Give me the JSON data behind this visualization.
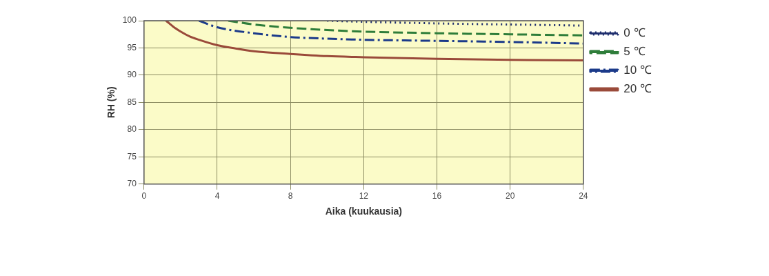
{
  "chart_data": {
    "type": "line",
    "xlabel": "Aika (kuukausia)",
    "ylabel": "RH (%)",
    "xlim": [
      0,
      24
    ],
    "xticks": [
      0,
      4,
      8,
      12,
      16,
      20,
      24
    ],
    "ylim": [
      70,
      100
    ],
    "yticks": [
      70,
      75,
      80,
      85,
      90,
      95,
      100
    ],
    "grid": true,
    "legend": "right",
    "marker": "none",
    "series": [
      {
        "name": "0 ℃",
        "color": "#1f2f6e",
        "line_style": "dotted",
        "x": [
          10,
          12,
          16,
          20,
          24
        ],
        "values": [
          100,
          99.8,
          99.5,
          99.3,
          99.1
        ]
      },
      {
        "name": "5 ℃",
        "color": "#2e7d3a",
        "line_style": "dashed",
        "x": [
          4.6,
          6,
          8,
          10,
          12,
          16,
          20,
          24
        ],
        "values": [
          100,
          99.3,
          98.7,
          98.3,
          98.0,
          97.7,
          97.5,
          97.3
        ]
      },
      {
        "name": "10 ℃",
        "color": "#1b3a8a",
        "line_style": "dashdot",
        "x": [
          3,
          4,
          6,
          8,
          10,
          12,
          16,
          20,
          24
        ],
        "values": [
          100,
          98.8,
          97.7,
          97.0,
          96.7,
          96.5,
          96.3,
          96.1,
          95.8
        ]
      },
      {
        "name": "20 ℃",
        "color": "#9a4a3a",
        "line_style": "solid",
        "x": [
          1.2,
          1.6,
          2,
          2.5,
          3,
          4,
          5,
          6,
          8,
          10,
          12,
          16,
          20,
          24
        ],
        "values": [
          100,
          98.9,
          98.0,
          97.1,
          96.5,
          95.5,
          94.9,
          94.4,
          93.9,
          93.5,
          93.3,
          93.0,
          92.8,
          92.7
        ]
      }
    ]
  }
}
